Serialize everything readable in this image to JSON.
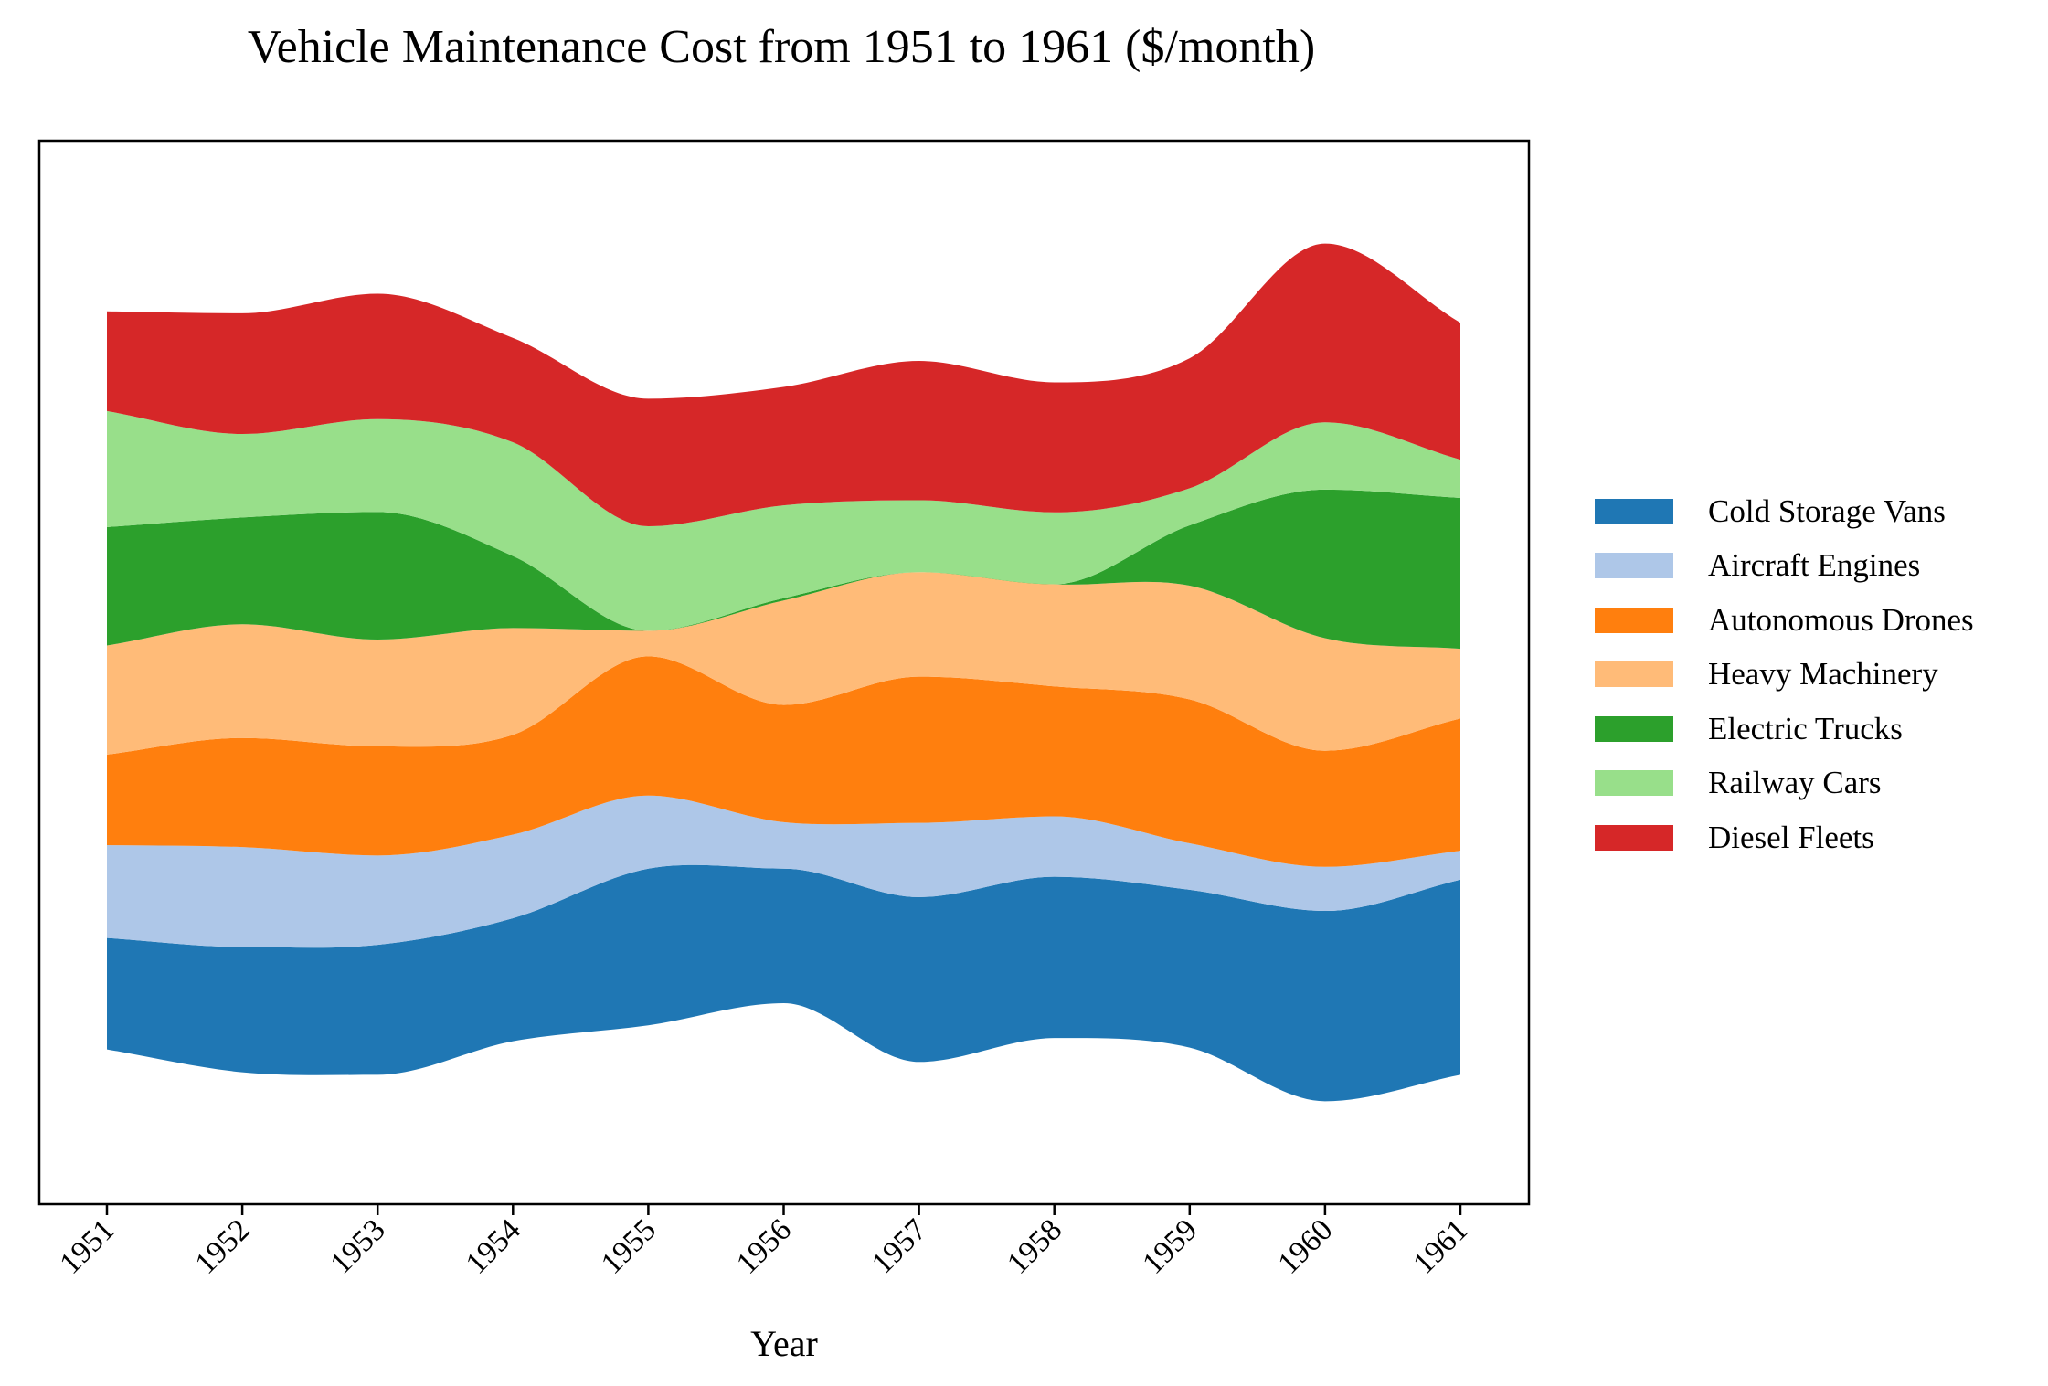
{
  "chart_data": {
    "type": "streamgraph",
    "title": "Vehicle Maintenance Cost from 1951 to 1961 ($/month)",
    "xlabel": "Year",
    "ylabel": "",
    "categories": [
      "1951",
      "1952",
      "1953",
      "1954",
      "1955",
      "1956",
      "1957",
      "1958",
      "1959",
      "1960",
      "1961"
    ],
    "baseline": "wiggle",
    "grid": false,
    "legend_position": "right",
    "series": [
      {
        "name": "Cold Storage Vans",
        "color": "#1f77b4",
        "values": [
          96,
          108,
          112,
          106,
          135,
          116,
          142,
          139,
          136,
          164,
          168
        ]
      },
      {
        "name": "Aircraft Engines",
        "color": "#aec7e8",
        "values": [
          80,
          86,
          77,
          72,
          63,
          40,
          64,
          52,
          40,
          38,
          25
        ]
      },
      {
        "name": "Autonomous Drones",
        "color": "#ff7f0e",
        "values": [
          78,
          94,
          94,
          86,
          120,
          101,
          126,
          112,
          124,
          100,
          114
        ]
      },
      {
        "name": "Heavy Machinery",
        "color": "#ffbb78",
        "values": [
          94,
          98,
          92,
          92,
          22,
          90,
          90,
          88,
          98,
          97,
          60
        ]
      },
      {
        "name": "Electric Trucks",
        "color": "#2ca02c",
        "values": [
          102,
          92,
          110,
          62,
          0,
          2,
          0,
          0,
          52,
          128,
          130
        ]
      },
      {
        "name": "Railway Cars",
        "color": "#98df8a",
        "values": [
          100,
          72,
          80,
          98,
          90,
          80,
          62,
          62,
          32,
          58,
          33
        ]
      },
      {
        "name": "Diesel Fleets",
        "color": "#d62728",
        "values": [
          86,
          104,
          108,
          90,
          110,
          102,
          120,
          112,
          112,
          154,
          118
        ]
      }
    ]
  }
}
